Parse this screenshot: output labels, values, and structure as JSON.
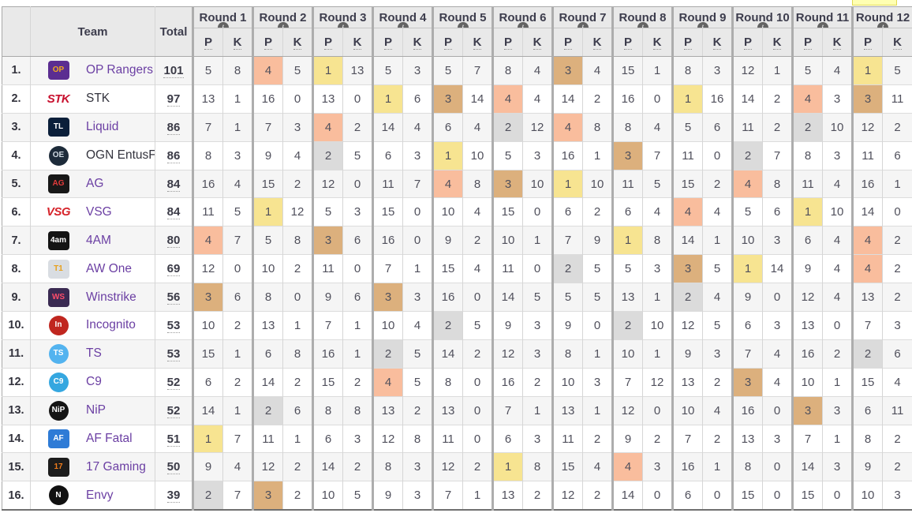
{
  "page": {
    "cutoff_banner": ""
  },
  "table": {
    "info_glyph": "i",
    "columns": {
      "team": "Team",
      "total": "Total",
      "p": "P",
      "k": "K"
    },
    "rounds": [
      "Round 1",
      "Round 2",
      "Round 3",
      "Round 4",
      "Round 5",
      "Round 6",
      "Round 7",
      "Round 8",
      "Round 9",
      "Round 10",
      "Round 11",
      "Round 12"
    ],
    "placement_colors": {
      "1": "#f7e491",
      "2": "#dbdbdb",
      "3": "#dcb07d",
      "4": "#f9bd9d"
    },
    "teams": [
      {
        "rank": "1.",
        "name": "OP Rangers",
        "total": "101",
        "logo": {
          "label": "OP",
          "shape": "square",
          "bg": "#5b2d91",
          "fg": "#f0a81f"
        },
        "rounds": [
          [
            5,
            8
          ],
          [
            4,
            5
          ],
          [
            1,
            13
          ],
          [
            5,
            3
          ],
          [
            5,
            7
          ],
          [
            8,
            4
          ],
          [
            3,
            4
          ],
          [
            15,
            1
          ],
          [
            8,
            3
          ],
          [
            12,
            1
          ],
          [
            5,
            4
          ],
          [
            1,
            5
          ]
        ]
      },
      {
        "rank": "2.",
        "name": "STK",
        "total": "97",
        "name_color": "#33333d",
        "logo": {
          "label": "STK",
          "shape": "text",
          "bg": "transparent",
          "fg": "#c8102e"
        },
        "rounds": [
          [
            13,
            1
          ],
          [
            16,
            0
          ],
          [
            13,
            0
          ],
          [
            1,
            6
          ],
          [
            3,
            14
          ],
          [
            4,
            4
          ],
          [
            14,
            2
          ],
          [
            16,
            0
          ],
          [
            1,
            16
          ],
          [
            14,
            2
          ],
          [
            4,
            3
          ],
          [
            3,
            11
          ]
        ]
      },
      {
        "rank": "3.",
        "name": "Liquid",
        "total": "86",
        "logo": {
          "label": "TL",
          "shape": "square",
          "bg": "#0b1f3a",
          "fg": "#ffffff"
        },
        "rounds": [
          [
            7,
            1
          ],
          [
            7,
            3
          ],
          [
            4,
            2
          ],
          [
            14,
            4
          ],
          [
            6,
            4
          ],
          [
            2,
            12
          ],
          [
            4,
            8
          ],
          [
            8,
            4
          ],
          [
            5,
            6
          ],
          [
            11,
            2
          ],
          [
            2,
            10
          ],
          [
            12,
            2
          ]
        ]
      },
      {
        "rank": "4.",
        "name": "OGN EntusF",
        "total": "86",
        "name_color": "#33333d",
        "logo": {
          "label": "OE",
          "shape": "circle",
          "bg": "#1d2b3a",
          "fg": "#cfd8e0"
        },
        "rounds": [
          [
            8,
            3
          ],
          [
            9,
            4
          ],
          [
            2,
            5
          ],
          [
            6,
            3
          ],
          [
            1,
            10
          ],
          [
            5,
            3
          ],
          [
            16,
            1
          ],
          [
            3,
            7
          ],
          [
            11,
            0
          ],
          [
            2,
            7
          ],
          [
            8,
            3
          ],
          [
            11,
            6
          ]
        ]
      },
      {
        "rank": "5.",
        "name": "AG",
        "total": "84",
        "logo": {
          "label": "AG",
          "shape": "square",
          "bg": "#181818",
          "fg": "#e23b3b"
        },
        "rounds": [
          [
            16,
            4
          ],
          [
            15,
            2
          ],
          [
            12,
            0
          ],
          [
            11,
            7
          ],
          [
            4,
            8
          ],
          [
            3,
            10
          ],
          [
            1,
            10
          ],
          [
            11,
            5
          ],
          [
            15,
            2
          ],
          [
            4,
            8
          ],
          [
            11,
            4
          ],
          [
            16,
            1
          ]
        ]
      },
      {
        "rank": "6.",
        "name": "VSG",
        "total": "84",
        "logo": {
          "label": "VSG",
          "shape": "text",
          "bg": "transparent",
          "fg": "#d6232a"
        },
        "rounds": [
          [
            11,
            5
          ],
          [
            1,
            12
          ],
          [
            5,
            3
          ],
          [
            15,
            0
          ],
          [
            10,
            4
          ],
          [
            15,
            0
          ],
          [
            6,
            2
          ],
          [
            6,
            4
          ],
          [
            4,
            4
          ],
          [
            5,
            6
          ],
          [
            1,
            10
          ],
          [
            14,
            0
          ]
        ]
      },
      {
        "rank": "7.",
        "name": "4AM",
        "total": "80",
        "logo": {
          "label": "4am",
          "shape": "square",
          "bg": "#141414",
          "fg": "#ffffff"
        },
        "rounds": [
          [
            4,
            7
          ],
          [
            5,
            8
          ],
          [
            3,
            6
          ],
          [
            16,
            0
          ],
          [
            9,
            2
          ],
          [
            10,
            1
          ],
          [
            7,
            9
          ],
          [
            1,
            8
          ],
          [
            14,
            1
          ],
          [
            10,
            3
          ],
          [
            6,
            4
          ],
          [
            4,
            2
          ]
        ]
      },
      {
        "rank": "8.",
        "name": "AW One",
        "total": "69",
        "logo": {
          "label": "T1",
          "shape": "square",
          "bg": "#d9dde2",
          "fg": "#e8a01a"
        },
        "rounds": [
          [
            12,
            0
          ],
          [
            10,
            2
          ],
          [
            11,
            0
          ],
          [
            7,
            1
          ],
          [
            15,
            4
          ],
          [
            11,
            0
          ],
          [
            2,
            5
          ],
          [
            5,
            3
          ],
          [
            3,
            5
          ],
          [
            1,
            14
          ],
          [
            9,
            4
          ],
          [
            4,
            2
          ]
        ]
      },
      {
        "rank": "9.",
        "name": "Winstrike",
        "total": "56",
        "logo": {
          "label": "WS",
          "shape": "square",
          "bg": "#3a2a52",
          "fg": "#ff4d6a"
        },
        "rounds": [
          [
            3,
            6
          ],
          [
            8,
            0
          ],
          [
            9,
            6
          ],
          [
            3,
            3
          ],
          [
            16,
            0
          ],
          [
            14,
            5
          ],
          [
            5,
            5
          ],
          [
            13,
            1
          ],
          [
            2,
            4
          ],
          [
            9,
            0
          ],
          [
            12,
            4
          ],
          [
            13,
            2
          ]
        ]
      },
      {
        "rank": "10.",
        "name": "Incognito",
        "total": "53",
        "logo": {
          "label": "In",
          "shape": "circle",
          "bg": "#c0261f",
          "fg": "#ffffff"
        },
        "rounds": [
          [
            10,
            2
          ],
          [
            13,
            1
          ],
          [
            7,
            1
          ],
          [
            10,
            4
          ],
          [
            2,
            5
          ],
          [
            9,
            3
          ],
          [
            9,
            0
          ],
          [
            2,
            10
          ],
          [
            12,
            5
          ],
          [
            6,
            3
          ],
          [
            13,
            0
          ],
          [
            7,
            3
          ]
        ]
      },
      {
        "rank": "11.",
        "name": "TS",
        "total": "53",
        "logo": {
          "label": "TS",
          "shape": "circle",
          "bg": "#53b3ef",
          "fg": "#ffffff"
        },
        "rounds": [
          [
            15,
            1
          ],
          [
            6,
            8
          ],
          [
            16,
            1
          ],
          [
            2,
            5
          ],
          [
            14,
            2
          ],
          [
            12,
            3
          ],
          [
            8,
            1
          ],
          [
            10,
            1
          ],
          [
            9,
            3
          ],
          [
            7,
            4
          ],
          [
            16,
            2
          ],
          [
            2,
            6
          ]
        ]
      },
      {
        "rank": "12.",
        "name": "C9",
        "total": "52",
        "logo": {
          "label": "C9",
          "shape": "circle",
          "bg": "#35a7e0",
          "fg": "#ffffff"
        },
        "rounds": [
          [
            6,
            2
          ],
          [
            14,
            2
          ],
          [
            15,
            2
          ],
          [
            4,
            5
          ],
          [
            8,
            0
          ],
          [
            16,
            2
          ],
          [
            10,
            3
          ],
          [
            7,
            12
          ],
          [
            13,
            2
          ],
          [
            3,
            4
          ],
          [
            10,
            1
          ],
          [
            15,
            4
          ]
        ]
      },
      {
        "rank": "13.",
        "name": "NiP",
        "total": "52",
        "logo": {
          "label": "NiP",
          "shape": "circle",
          "bg": "#141414",
          "fg": "#ffffff"
        },
        "rounds": [
          [
            14,
            1
          ],
          [
            2,
            6
          ],
          [
            8,
            8
          ],
          [
            13,
            2
          ],
          [
            13,
            0
          ],
          [
            7,
            1
          ],
          [
            13,
            1
          ],
          [
            12,
            0
          ],
          [
            10,
            4
          ],
          [
            16,
            0
          ],
          [
            3,
            3
          ],
          [
            6,
            11
          ]
        ]
      },
      {
        "rank": "14.",
        "name": "AF Fatal",
        "total": "51",
        "logo": {
          "label": "AF",
          "shape": "square",
          "bg": "#2e7bd6",
          "fg": "#ffffff"
        },
        "rounds": [
          [
            1,
            7
          ],
          [
            11,
            1
          ],
          [
            6,
            3
          ],
          [
            12,
            8
          ],
          [
            11,
            0
          ],
          [
            6,
            3
          ],
          [
            11,
            2
          ],
          [
            9,
            2
          ],
          [
            7,
            2
          ],
          [
            13,
            3
          ],
          [
            7,
            1
          ],
          [
            8,
            2
          ]
        ]
      },
      {
        "rank": "15.",
        "name": "17 Gaming",
        "total": "50",
        "logo": {
          "label": "17",
          "shape": "square",
          "bg": "#1c1c1c",
          "fg": "#f07c1b"
        },
        "rounds": [
          [
            9,
            4
          ],
          [
            12,
            2
          ],
          [
            14,
            2
          ],
          [
            8,
            3
          ],
          [
            12,
            2
          ],
          [
            1,
            8
          ],
          [
            15,
            4
          ],
          [
            4,
            3
          ],
          [
            16,
            1
          ],
          [
            8,
            0
          ],
          [
            14,
            3
          ],
          [
            9,
            2
          ]
        ]
      },
      {
        "rank": "16.",
        "name": "Envy",
        "total": "39",
        "logo": {
          "label": "N",
          "shape": "circle",
          "bg": "#111111",
          "fg": "#ffffff"
        },
        "rounds": [
          [
            2,
            7
          ],
          [
            3,
            2
          ],
          [
            10,
            5
          ],
          [
            9,
            3
          ],
          [
            7,
            1
          ],
          [
            13,
            2
          ],
          [
            12,
            2
          ],
          [
            14,
            0
          ],
          [
            6,
            0
          ],
          [
            15,
            0
          ],
          [
            15,
            0
          ],
          [
            10,
            3
          ]
        ]
      }
    ]
  }
}
